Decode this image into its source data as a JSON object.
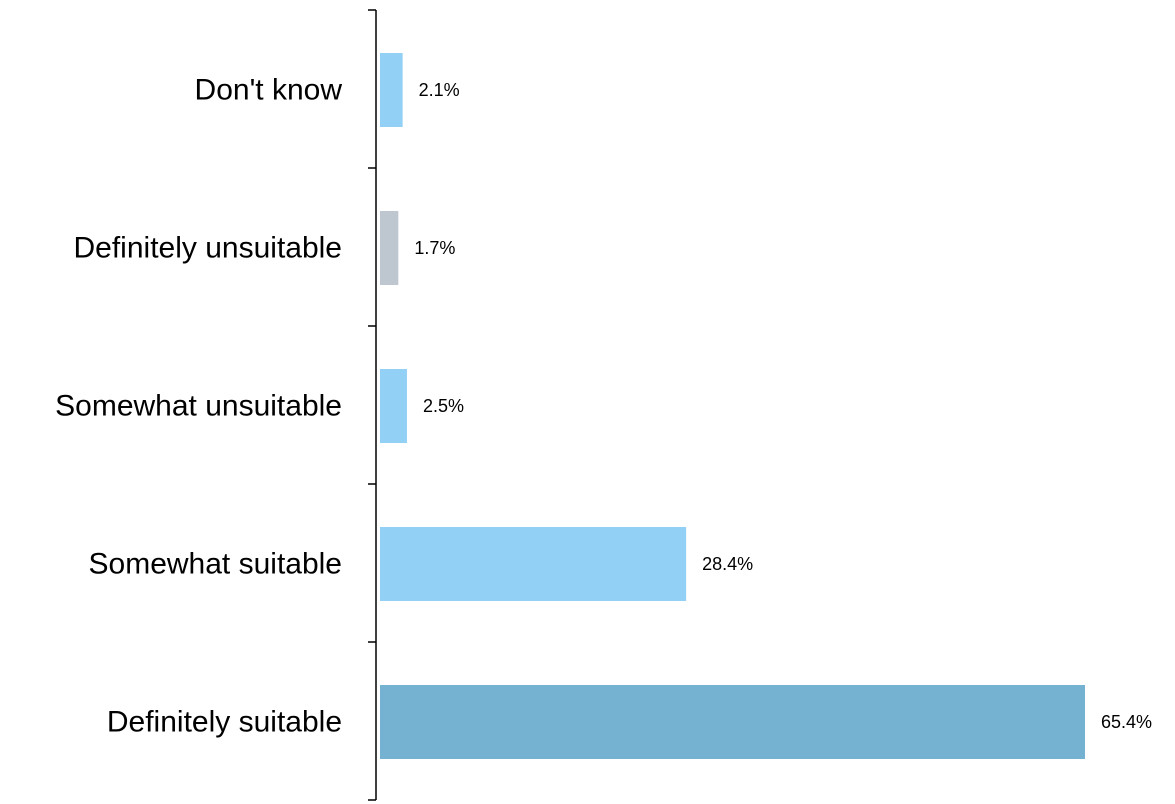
{
  "chart_data": {
    "type": "bar",
    "orientation": "horizontal",
    "categories": [
      "Don't know",
      "Definitely unsuitable",
      "Somewhat unsuitable",
      "Somewhat suitable",
      "Definitely suitable"
    ],
    "values": [
      2.1,
      1.7,
      2.5,
      28.4,
      65.4
    ],
    "data_labels": [
      "2.1%",
      "1.7%",
      "2.5%",
      "28.4%",
      "65.4%"
    ],
    "bar_colors": [
      "#92d0f5",
      "#bec7d0",
      "#92d0f5",
      "#92d0f5",
      "#75b1d1"
    ],
    "xlim": [
      0,
      65.4
    ],
    "grid": false,
    "legend": "none"
  }
}
